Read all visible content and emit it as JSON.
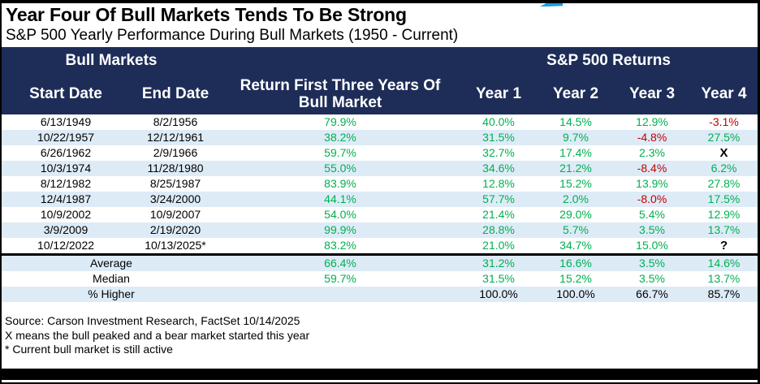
{
  "chart_data": {
    "type": "table",
    "title": "Year Four Of Bull Markets Tends To Be Strong",
    "subtitle": "S&P 500 Yearly Performance During Bull Markets (1950 - Current)",
    "group_headers": {
      "left": "Bull Markets",
      "right": "S&P 500 Returns"
    },
    "columns": [
      "Start Date",
      "End Date",
      "Return First Three Years Of Bull Market",
      "Year 1",
      "Year 2",
      "Year 3",
      "Year 4"
    ],
    "rows": [
      {
        "start_date": "6/13/1949",
        "end_date": "8/2/1956",
        "return_first_three_years": "79.9%",
        "year1": "40.0%",
        "year2": "14.5%",
        "year3": "12.9%",
        "year4": "-3.1%"
      },
      {
        "start_date": "10/22/1957",
        "end_date": "12/12/1961",
        "return_first_three_years": "38.2%",
        "year1": "31.5%",
        "year2": "9.7%",
        "year3": "-4.8%",
        "year4": "27.5%"
      },
      {
        "start_date": "6/26/1962",
        "end_date": "2/9/1966",
        "return_first_three_years": "59.7%",
        "year1": "32.7%",
        "year2": "17.4%",
        "year3": "2.3%",
        "year4": "X"
      },
      {
        "start_date": "10/3/1974",
        "end_date": "11/28/1980",
        "return_first_three_years": "55.0%",
        "year1": "34.6%",
        "year2": "21.2%",
        "year3": "-8.4%",
        "year4": "6.2%"
      },
      {
        "start_date": "8/12/1982",
        "end_date": "8/25/1987",
        "return_first_three_years": "83.9%",
        "year1": "12.8%",
        "year2": "15.2%",
        "year3": "13.9%",
        "year4": "27.8%"
      },
      {
        "start_date": "12/4/1987",
        "end_date": "3/24/2000",
        "return_first_three_years": "44.1%",
        "year1": "57.7%",
        "year2": "2.0%",
        "year3": "-8.0%",
        "year4": "17.5%"
      },
      {
        "start_date": "10/9/2002",
        "end_date": "10/9/2007",
        "return_first_three_years": "54.0%",
        "year1": "21.4%",
        "year2": "29.0%",
        "year3": "5.4%",
        "year4": "12.9%"
      },
      {
        "start_date": "3/9/2009",
        "end_date": "2/19/2020",
        "return_first_three_years": "99.9%",
        "year1": "28.8%",
        "year2": "5.7%",
        "year3": "3.5%",
        "year4": "13.7%"
      },
      {
        "start_date": "10/12/2022",
        "end_date": "10/13/2025*",
        "return_first_three_years": "83.2%",
        "year1": "21.0%",
        "year2": "34.7%",
        "year3": "15.0%",
        "year4": "?"
      }
    ],
    "summary_rows": [
      {
        "label": "Average",
        "return_first_three_years": "66.4%",
        "year1": "31.2%",
        "year2": "16.6%",
        "year3": "3.5%",
        "year4": "14.6%"
      },
      {
        "label": "Median",
        "return_first_three_years": "59.7%",
        "year1": "31.5%",
        "year2": "15.2%",
        "year3": "3.5%",
        "year4": "13.7%"
      },
      {
        "label": "% Higher",
        "return_first_three_years": "",
        "year1": "100.0%",
        "year2": "100.0%",
        "year3": "66.7%",
        "year4": "85.7%"
      }
    ],
    "footnotes": [
      "Source: Carson Investment Research, FactSet 10/14/2025",
      "X means the bull peaked and a bear market started this year",
      "* Current bull market is still active"
    ]
  },
  "colors": {
    "header_bg": "#1E2D58",
    "row_alt_bg": "#DDEBF7",
    "positive": "#00B050",
    "negative": "#C00000",
    "neutral_mark": "#000000",
    "logo_blue": "#1E9BE9"
  }
}
